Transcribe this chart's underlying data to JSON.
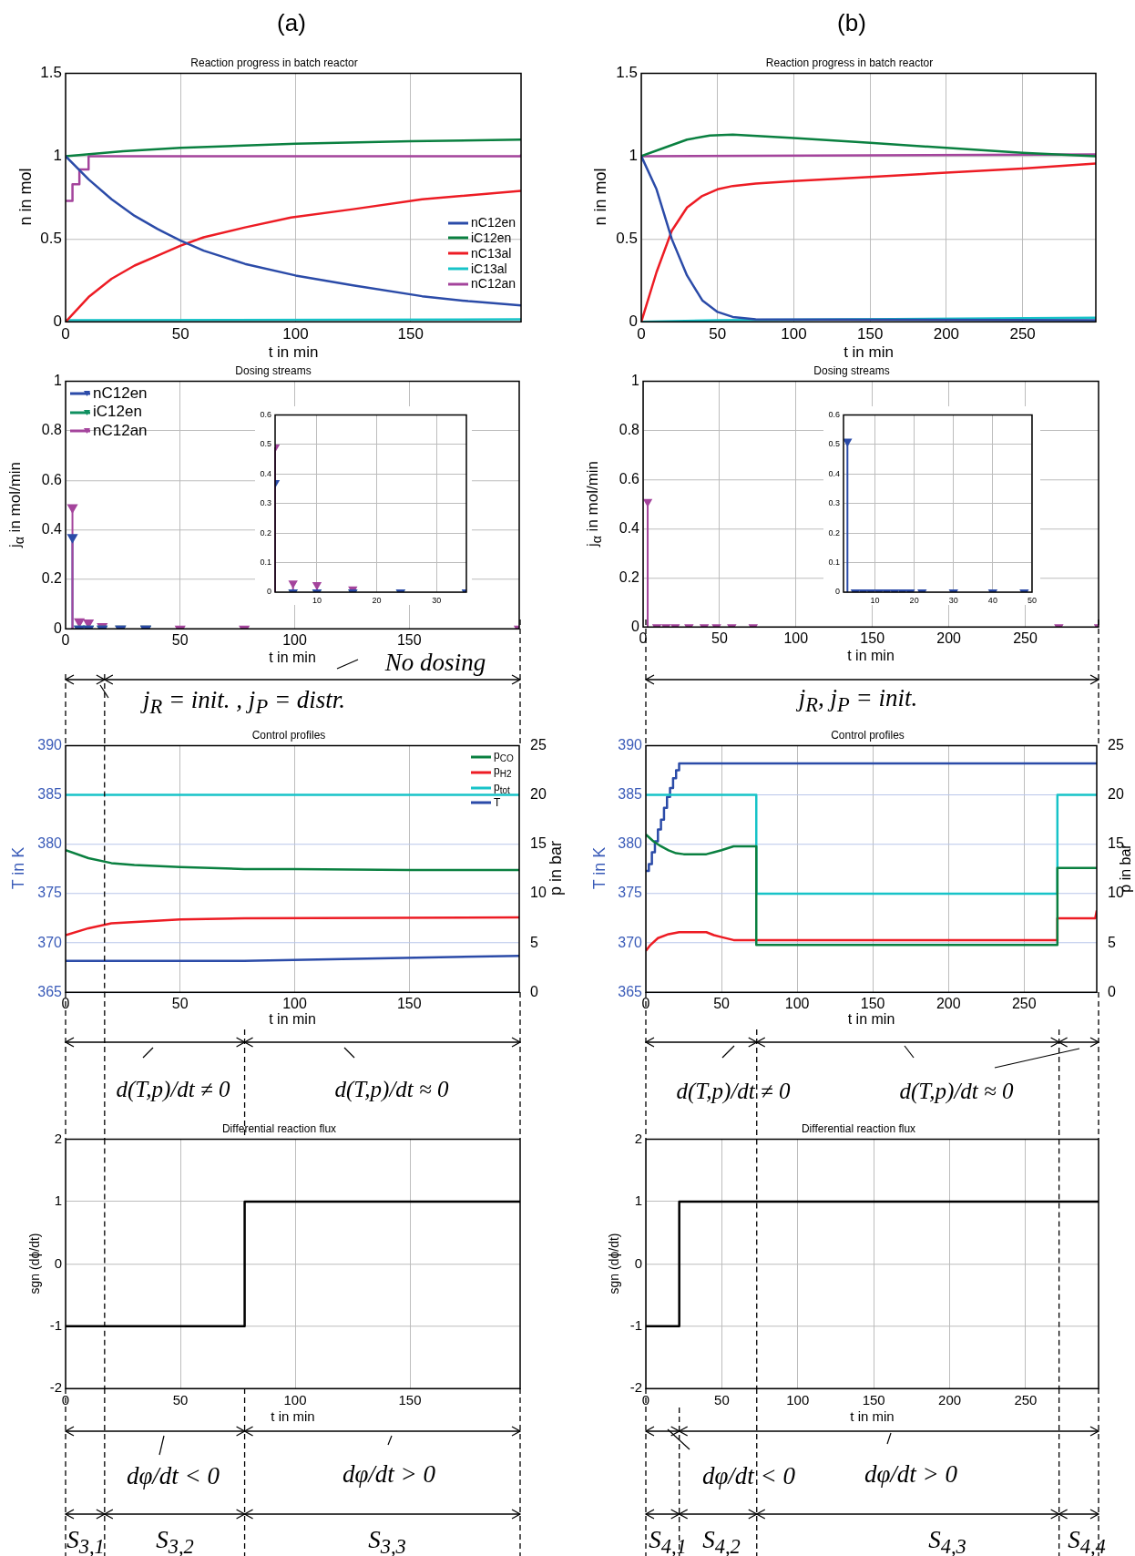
{
  "chart_data": [
    {
      "type": "line",
      "title": "Reaction progress in batch reactor",
      "xlabel": "t in min",
      "ylabel": "n in mol",
      "xlim": [
        0,
        198
      ],
      "xticks": [
        0,
        50,
        100,
        150
      ],
      "ylim": [
        0,
        1.5
      ],
      "yticks": [
        0,
        0.5,
        1,
        1.5
      ],
      "grid": true,
      "legend": "right",
      "annotations": [
        "(a)"
      ],
      "series": [
        {
          "name": "nC12en",
          "color": "#2b4ba8",
          "x": [
            0,
            10,
            20,
            30,
            40,
            50,
            60,
            78,
            100,
            125,
            155,
            175,
            198
          ],
          "values": [
            1,
            0.86,
            0.74,
            0.64,
            0.56,
            0.49,
            0.43,
            0.35,
            0.28,
            0.22,
            0.155,
            0.125,
            0.1
          ]
        },
        {
          "name": "iC12en",
          "color": "#0a8040",
          "x": [
            0,
            25,
            50,
            100,
            150,
            198
          ],
          "values": [
            1,
            1.03,
            1.05,
            1.075,
            1.09,
            1.1
          ]
        },
        {
          "name": "nC13al",
          "color": "#ed1c24",
          "x": [
            0,
            10,
            20,
            30,
            40,
            50,
            60,
            78,
            98,
            125,
            155,
            198
          ],
          "values": [
            0,
            0.15,
            0.26,
            0.34,
            0.4,
            0.46,
            0.51,
            0.57,
            0.63,
            0.68,
            0.74,
            0.79
          ]
        },
        {
          "name": "iC13al",
          "color": "#17c3c8",
          "x": [
            0,
            198
          ],
          "values": [
            0.01,
            0.015
          ]
        },
        {
          "name": "nC12an",
          "color": "#a4449c",
          "type": "step",
          "x": [
            0,
            3,
            6,
            10,
            198
          ],
          "values": [
            0.73,
            0.83,
            0.92,
            1,
            1.01
          ]
        }
      ]
    },
    {
      "type": "line",
      "title": "Reaction progress in batch reactor",
      "xlabel": "t in min",
      "ylabel": "n in mol",
      "xlim": [
        0,
        298
      ],
      "xticks": [
        0,
        50,
        100,
        150,
        200,
        250
      ],
      "ylim": [
        0,
        1.5
      ],
      "yticks": [
        0,
        0.5,
        1,
        1.5
      ],
      "grid": true,
      "annotations": [
        "(b)"
      ],
      "series": [
        {
          "color": "#2b4ba8",
          "x": [
            0,
            10,
            20,
            30,
            40,
            50,
            60,
            75,
            298
          ],
          "values": [
            1,
            0.8,
            0.5,
            0.28,
            0.13,
            0.06,
            0.03,
            0.015,
            0.01
          ]
        },
        {
          "color": "#0a8040",
          "x": [
            0,
            15,
            30,
            45,
            60,
            100,
            150,
            200,
            250,
            298
          ],
          "values": [
            1,
            1.05,
            1.1,
            1.125,
            1.13,
            1.11,
            1.08,
            1.05,
            1.02,
            1
          ]
        },
        {
          "color": "#ed1c24",
          "x": [
            0,
            10,
            20,
            30,
            40,
            50,
            60,
            75,
            100,
            150,
            200,
            250,
            298
          ],
          "values": [
            0,
            0.3,
            0.55,
            0.69,
            0.76,
            0.8,
            0.82,
            0.835,
            0.85,
            0.875,
            0.9,
            0.925,
            0.955
          ]
        },
        {
          "color": "#17c3c8",
          "x": [
            0,
            50,
            298
          ],
          "values": [
            0,
            0.01,
            0.025
          ]
        },
        {
          "color": "#a4449c",
          "x": [
            0,
            298
          ],
          "values": [
            1,
            1.01
          ]
        }
      ]
    },
    {
      "type": "lollipop",
      "title": "Dosing streams",
      "xlabel": "t in min",
      "ylabel": "j$_{α}$ in mol/min",
      "xlim": [
        0,
        198
      ],
      "xticks": [
        0,
        50,
        100,
        150
      ],
      "ylim": [
        0,
        1
      ],
      "yticks": [
        0,
        0.2,
        0.4,
        0.6,
        0.8,
        1
      ],
      "grid": true,
      "legend": "top left",
      "marker": "triangle",
      "annotations": [
        "No dosing",
        "j$_{R}$ = init. , j$_{P}$ = distr."
      ],
      "series": [
        {
          "name": "nC12en",
          "color": "#2b4ba8",
          "x": [
            3,
            6,
            10,
            16,
            24,
            35
          ],
          "values": [
            0.37,
            0,
            0,
            0,
            0,
            0
          ]
        },
        {
          "name": "iC12en",
          "color": "#109060",
          "x": [
            6,
            10,
            16,
            24,
            35
          ],
          "values": [
            0,
            0,
            0,
            0,
            0
          ]
        },
        {
          "name": "nC12an",
          "color": "#a4449c",
          "x": [
            3,
            6,
            10,
            16,
            24,
            35,
            50,
            78,
            198
          ],
          "values": [
            0.49,
            0.03,
            0.025,
            0.01,
            0,
            0,
            0,
            0,
            0
          ]
        }
      ]
    },
    {
      "type": "lollipop",
      "xlim": [
        3,
        35
      ],
      "xticks": [
        10,
        20,
        30
      ],
      "ylim": [
        0,
        0.6
      ],
      "yticks": [
        0,
        0.1,
        0.2,
        0.3,
        0.4,
        0.5,
        0.6
      ],
      "grid": true,
      "marker": "triangle",
      "series": [
        {
          "color": "#2b4ba8",
          "x": [
            3,
            6,
            10,
            16,
            24,
            35
          ],
          "values": [
            0.37,
            0,
            0,
            0,
            0,
            0
          ]
        },
        {
          "color": "#109060",
          "x": [
            6,
            10,
            16,
            24,
            35
          ],
          "values": [
            0,
            0,
            0,
            0,
            0
          ]
        },
        {
          "color": "#a4449c",
          "x": [
            3,
            6,
            10,
            16
          ],
          "values": [
            0.49,
            0.03,
            0.025,
            0.01
          ]
        }
      ]
    },
    {
      "type": "lollipop",
      "title": "Dosing streams",
      "xlabel": "t in min",
      "ylabel": "j$_{α}$ in mol/min",
      "xlim": [
        0,
        298
      ],
      "xticks": [
        0,
        50,
        100,
        150,
        200,
        250
      ],
      "ylim": [
        0,
        1
      ],
      "yticks": [
        0,
        0.2,
        0.4,
        0.6,
        0.8,
        1
      ],
      "grid": true,
      "marker": "triangle",
      "annotations": [
        "j$_{R}$, j$_{P}$ = init."
      ],
      "series": [
        {
          "color": "#a4449c",
          "x": [
            3,
            9,
            15,
            21,
            30,
            40,
            48,
            58,
            72,
            272,
            298
          ],
          "values": [
            0.51,
            0,
            0,
            0,
            0,
            0,
            0,
            0,
            0,
            0,
            0
          ]
        }
      ]
    },
    {
      "type": "lollipop",
      "xlim": [
        2,
        50
      ],
      "xticks": [
        10,
        20,
        30,
        40,
        50
      ],
      "ylim": [
        0,
        0.6
      ],
      "yticks": [
        0,
        0.1,
        0.2,
        0.3,
        0.4,
        0.5,
        0.6
      ],
      "grid": true,
      "marker": "triangle",
      "series": [
        {
          "color": "#2b4ba8",
          "x": [
            3,
            5,
            7,
            9,
            11,
            13,
            15,
            17,
            19,
            22,
            30,
            40,
            48
          ],
          "values": [
            0.51,
            0,
            0,
            0,
            0,
            0,
            0,
            0,
            0,
            0,
            0,
            0,
            0
          ]
        }
      ]
    },
    {
      "type": "line",
      "title": "Control profiles",
      "xlabel": "t in min",
      "ylabel": "T in K",
      "y2label": "p in bar",
      "xlim": [
        0,
        198
      ],
      "xticks": [
        0,
        50,
        100,
        150
      ],
      "ylim": [
        365,
        390
      ],
      "yticks": [
        365,
        370,
        375,
        380,
        385,
        390
      ],
      "y2lim": [
        0,
        25
      ],
      "y2ticks": [
        0,
        5,
        10,
        15,
        20,
        25
      ],
      "grid": true,
      "legend": "top right",
      "ref_lines": [
        {
          "axis": "x",
          "value": 17,
          "color": "#000000",
          "line_style": "dashed"
        }
      ],
      "annotations": [
        "d(T,p)/dt ≠ 0",
        "d(T,p)/dt ≈ 0"
      ],
      "series": [
        {
          "name": "p$_{CO}$",
          "color": "#0a8040",
          "axis": "y2",
          "x": [
            0,
            10,
            20,
            30,
            50,
            78,
            100,
            150,
            198
          ],
          "values": [
            14.4,
            13.6,
            13.1,
            12.9,
            12.7,
            12.5,
            12.5,
            12.4,
            12.4
          ]
        },
        {
          "name": "p$_{H2}$",
          "color": "#ed1c24",
          "axis": "y2",
          "x": [
            0,
            10,
            20,
            50,
            78,
            198
          ],
          "values": [
            5.8,
            6.5,
            7,
            7.4,
            7.5,
            7.6
          ]
        },
        {
          "name": "p$_{tot}$",
          "color": "#17c3c8",
          "axis": "y2",
          "x": [
            0,
            198
          ],
          "values": [
            20,
            20
          ]
        },
        {
          "name": "T",
          "color": "#2b4ba8",
          "x": [
            0,
            78,
            198
          ],
          "values": [
            368.2,
            368.2,
            368.7
          ]
        }
      ]
    },
    {
      "type": "line",
      "title": "Control profiles",
      "xlabel": "t in min",
      "ylabel": "T in K",
      "y2label": "p in bar",
      "xlim": [
        0,
        298
      ],
      "xticks": [
        0,
        50,
        100,
        150,
        200,
        250
      ],
      "ylim": [
        365,
        390
      ],
      "yticks": [
        365,
        370,
        375,
        380,
        385,
        390
      ],
      "y2lim": [
        0,
        25
      ],
      "y2ticks": [
        0,
        5,
        10,
        15,
        20,
        25
      ],
      "grid": true,
      "annotations": [
        "d(T,p)/dt ≠ 0",
        "d(T,p)/dt ≈ 0"
      ],
      "series": [
        {
          "color": "#0a8040",
          "axis": "y2",
          "x": [
            0,
            5,
            10,
            15,
            20,
            25,
            40,
            45,
            50,
            58,
            73,
            73,
            272,
            272,
            298
          ],
          "values": [
            16,
            15.3,
            14.8,
            14.4,
            14.1,
            14,
            14,
            14.2,
            14.4,
            14.8,
            14.8,
            4.8,
            4.8,
            12.6,
            12.6
          ]
        },
        {
          "color": "#ed1c24",
          "axis": "y2",
          "x": [
            0,
            3,
            8,
            15,
            22,
            40,
            45,
            50,
            58,
            272,
            272,
            297,
            298
          ],
          "values": [
            4.2,
            4.8,
            5.5,
            5.9,
            6.1,
            6.1,
            5.8,
            5.6,
            5.3,
            5.3,
            7.5,
            7.5,
            8.3
          ]
        },
        {
          "color": "#17c3c8",
          "type": "step",
          "axis": "y2",
          "x": [
            0,
            73,
            272,
            298
          ],
          "values": [
            20,
            10,
            20,
            20
          ]
        },
        {
          "color": "#2b4ba8",
          "type": "step",
          "x": [
            0,
            2,
            4,
            6,
            8,
            10,
            12,
            14,
            16,
            18,
            20,
            22,
            298
          ],
          "values": [
            377.3,
            378,
            379.2,
            380.3,
            381.5,
            382.5,
            383.7,
            384.8,
            385.7,
            386.7,
            387.5,
            388.2,
            388.2
          ]
        }
      ]
    },
    {
      "type": "step",
      "title": "Differential reaction flux",
      "xlabel": "t in min",
      "ylabel": "sgn (dϕ/dt)",
      "xlim": [
        0,
        198
      ],
      "xticks": [
        0,
        50,
        100,
        150
      ],
      "ylim": [
        -2,
        2
      ],
      "yticks": [
        -2,
        -1,
        0,
        1,
        2
      ],
      "grid": true,
      "color": "#000000",
      "x": [
        0,
        78,
        198
      ],
      "values": [
        -1,
        1,
        1
      ],
      "ref_lines": [
        {
          "axis": "x",
          "value": 17,
          "color": "#000000",
          "line_style": "dashed"
        }
      ],
      "annotations": [
        "dφ/dt < 0",
        "dφ/dt > 0",
        "S$_{3,1}$",
        "S$_{3,2}$",
        "S$_{3,3}$"
      ]
    },
    {
      "type": "step",
      "title": "Differential reaction flux",
      "xlabel": "t in min",
      "ylabel": "sgn (dϕ/dt)",
      "xlim": [
        0,
        298
      ],
      "xticks": [
        0,
        50,
        100,
        150,
        200,
        250
      ],
      "ylim": [
        -2,
        2
      ],
      "yticks": [
        -2,
        -1,
        0,
        1,
        2
      ],
      "grid": true,
      "color": "#000000",
      "x": [
        0,
        22,
        298
      ],
      "values": [
        -1,
        1,
        1
      ],
      "ref_lines": [
        {
          "axis": "x",
          "value": 73,
          "color": "#000000",
          "line_style": "dashed"
        },
        {
          "axis": "x",
          "value": 272,
          "color": "#000000",
          "line_style": "dashed"
        }
      ],
      "annotations": [
        "dφ/dt < 0",
        "dφ/dt > 0",
        "S$_{4,1}$",
        "S$_{4,2}$",
        "S$_{4,3}$",
        "S$_{4,4}$"
      ]
    }
  ]
}
